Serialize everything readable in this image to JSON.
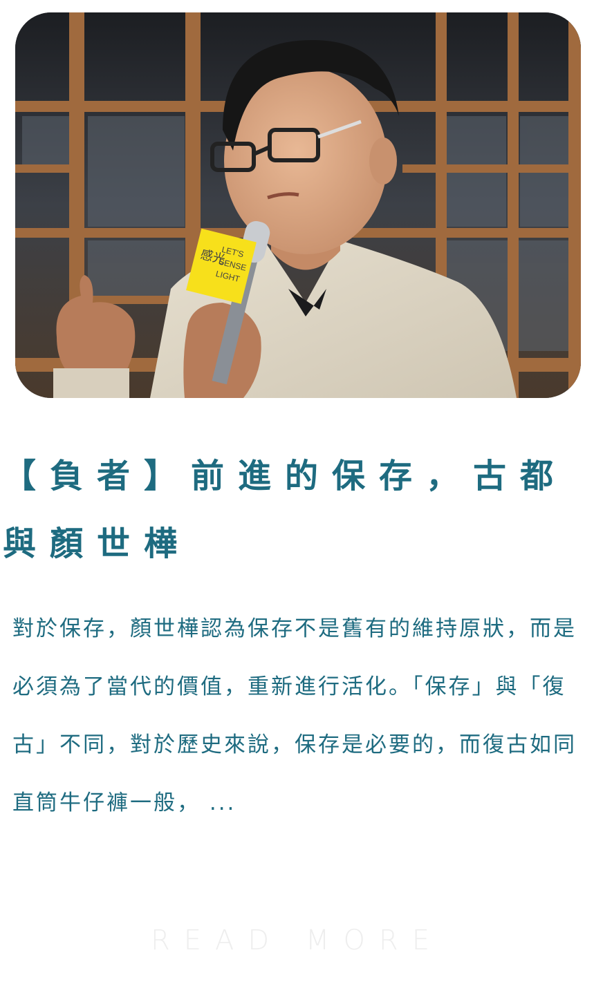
{
  "article": {
    "image_alt": "演講者手持麥克風",
    "mic_flag_line1": "LET'S",
    "mic_flag_line2": "SENSE",
    "mic_flag_line3": "LIGHT",
    "mic_flag_cjk": "感光",
    "title": "【負者】前進的保存，古都與顏世樺",
    "excerpt": "對於保存，顏世樺認為保存不是舊有的維持原狀，而是必須為了當代的價值，重新進行活化。「保存」與「復古」不同，對於歷史來說，保存是必要的，而復古如同直筒牛仔褲一般， ...",
    "read_more": "READ MORE"
  },
  "colors": {
    "title": "#1e6b80",
    "excerpt": "#1e6b80",
    "read_more": "#eeeeee",
    "mic_flag": "#f7e01b"
  }
}
